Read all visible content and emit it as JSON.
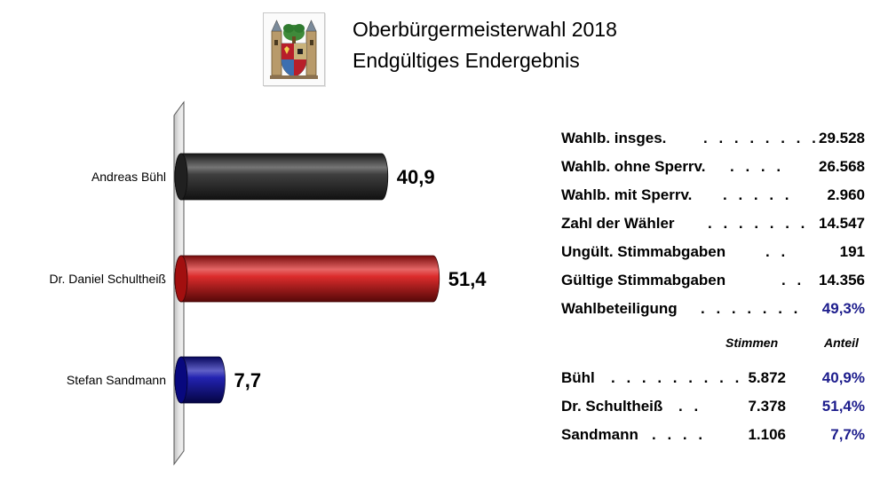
{
  "header": {
    "title": "Oberbürgermeisterwahl 2018",
    "subtitle": "Endgültiges Endergebnis",
    "crest_icon": "coat-of-arms-icon"
  },
  "chart_data": {
    "type": "bar",
    "orientation": "horizontal",
    "style": "3d-cylinder",
    "categories": [
      "Andreas Bühl",
      "Dr. Daniel Schultheiß",
      "Stefan Sandmann"
    ],
    "values": [
      40.9,
      51.4,
      7.7
    ],
    "value_labels": [
      "40,9",
      "51,4",
      "7,7"
    ],
    "colors": [
      "#2a2a2a",
      "#d81414",
      "#0a0aa8"
    ],
    "title": "",
    "xlabel": "",
    "ylabel": "",
    "xlim": [
      0,
      51.4
    ],
    "grid": false,
    "legend": "none"
  },
  "stats": {
    "rows": [
      {
        "label": "Wahlb. insges.",
        "dots": ". . . . . . . .",
        "value": "29.528",
        "blue": false
      },
      {
        "label": "Wahlb. ohne Sperrv.",
        "dots": ". . . .",
        "value": "26.568",
        "blue": false
      },
      {
        "label": "Wahlb. mit Sperrv.",
        "dots": ". . . . .",
        "value": "2.960",
        "blue": false
      },
      {
        "label": "Zahl der Wähler",
        "dots": ". . . . . . .",
        "value": "14.547",
        "blue": false
      },
      {
        "label": "Ungült. Stimmabgaben",
        "dots": ". .",
        "value": "191",
        "blue": false
      },
      {
        "label": "Gültige Stimmabgaben",
        "dots": ". .",
        "value": "14.356",
        "blue": false
      },
      {
        "label": "Wahlbeteiligung",
        "dots": ". . . . . . .",
        "value": "49,3%",
        "blue": true
      }
    ]
  },
  "results": {
    "col_votes": "Stimmen",
    "col_share": "Anteil",
    "rows": [
      {
        "name": "Bühl",
        "dots": ". . . . . . . . .",
        "votes": "5.872",
        "share": "40,9%"
      },
      {
        "name": "Dr. Schultheiß",
        "dots": ". .",
        "votes": "7.378",
        "share": "51,4%"
      },
      {
        "name": "Sandmann",
        "dots": ". . . .",
        "votes": "1.106",
        "share": "7,7%"
      }
    ]
  }
}
